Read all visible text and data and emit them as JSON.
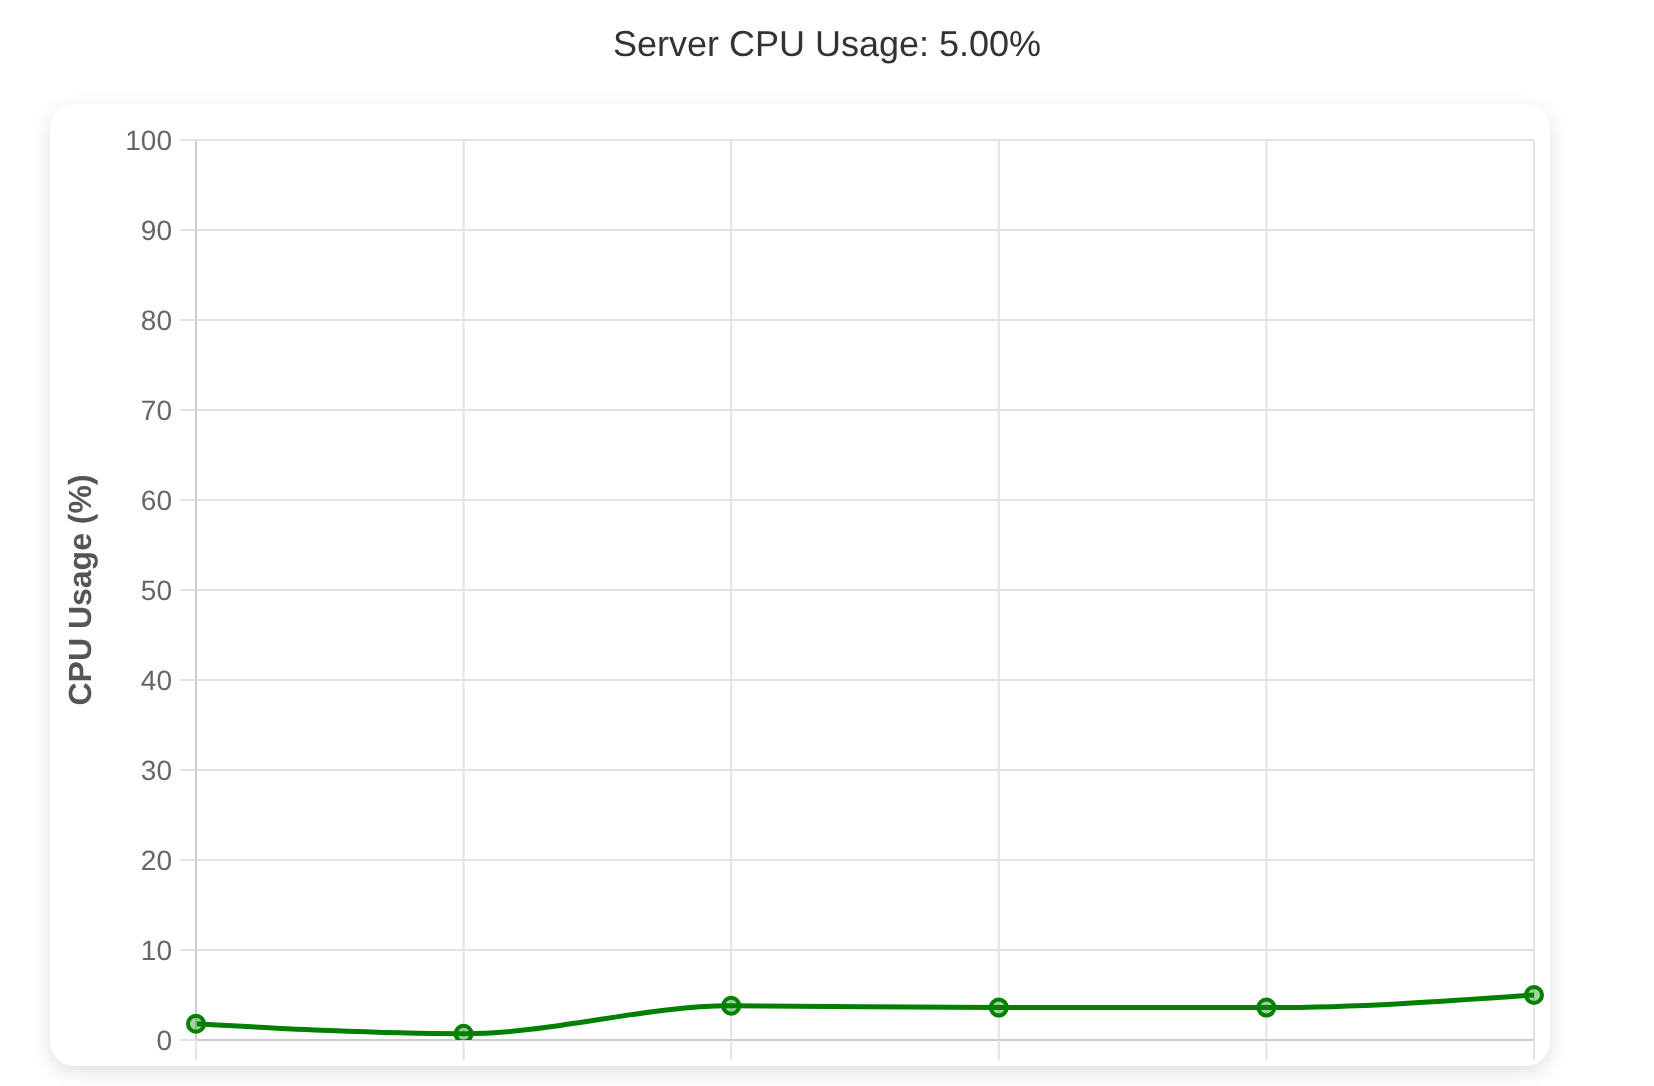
{
  "chart_data": {
    "type": "line",
    "title": "Server CPU Usage: 5.00%",
    "ylabel": "CPU Usage (%)",
    "categories": [
      null,
      null,
      null,
      null,
      null,
      null
    ],
    "values": [
      1.8,
      0.7,
      3.8,
      3.6,
      3.6,
      5.0
    ],
    "color": "#008000",
    "ylim": [
      0,
      100
    ],
    "yticks": [
      0,
      10,
      20,
      30,
      40,
      50,
      60,
      70,
      80,
      90,
      100
    ],
    "grid": true,
    "marker": "circle"
  }
}
